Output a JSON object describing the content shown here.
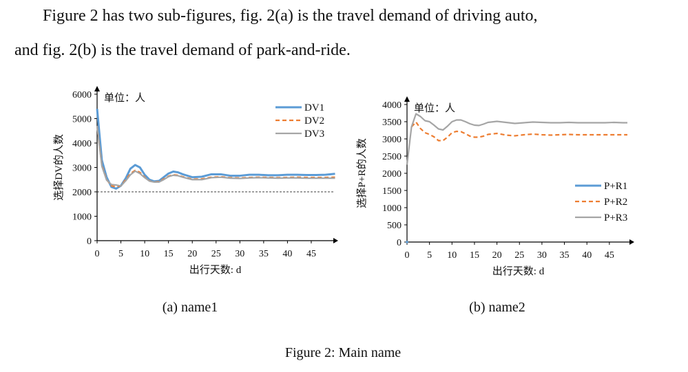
{
  "text": {
    "line1": "Figure 2 has two sub-figures, fig. 2(a) is the travel demand of driving auto,",
    "line2": "and fig. 2(b) is the travel demand of park-and-ride."
  },
  "captions": {
    "sub_a": "(a) name1",
    "sub_b": "(b) name2",
    "main": "Figure 2: Main name"
  },
  "chart_data": [
    {
      "type": "line",
      "unit_label": "单位：人",
      "xlabel": "出行天数: d",
      "ylabel": "选择DV的人数",
      "ylim": [
        0,
        6000
      ],
      "xlim": [
        0,
        50
      ],
      "yticks": [
        0,
        1000,
        2000,
        3000,
        4000,
        5000,
        6000
      ],
      "xticks": [
        0,
        5,
        10,
        15,
        20,
        25,
        30,
        35,
        40,
        45
      ],
      "grid": false,
      "legend": "top-right",
      "reference_line": {
        "y": 2000,
        "style": "dashed"
      },
      "x": [
        0,
        1,
        2,
        3,
        4,
        5,
        6,
        7,
        8,
        9,
        10,
        11,
        12,
        13,
        14,
        15,
        16,
        17,
        18,
        20,
        22,
        24,
        26,
        28,
        30,
        32,
        34,
        36,
        38,
        40,
        42,
        44,
        46,
        48,
        50
      ],
      "series": [
        {
          "name": "DV1",
          "color": "#5b9bd5",
          "style": "solid",
          "values": [
            5400,
            3300,
            2600,
            2200,
            2130,
            2250,
            2550,
            2950,
            3100,
            3000,
            2700,
            2500,
            2430,
            2450,
            2600,
            2750,
            2830,
            2800,
            2720,
            2600,
            2620,
            2720,
            2720,
            2660,
            2660,
            2700,
            2700,
            2680,
            2680,
            2700,
            2700,
            2690,
            2690,
            2700,
            2740
          ]
        },
        {
          "name": "DV2",
          "color": "#ed7d31",
          "style": "dashed",
          "values": [
            4700,
            3100,
            2500,
            2250,
            2200,
            2250,
            2500,
            2750,
            2880,
            2800,
            2600,
            2450,
            2400,
            2420,
            2530,
            2640,
            2700,
            2680,
            2620,
            2520,
            2530,
            2600,
            2620,
            2580,
            2570,
            2590,
            2600,
            2590,
            2580,
            2590,
            2600,
            2590,
            2590,
            2590,
            2600
          ]
        },
        {
          "name": "DV3",
          "color": "#a5a5a5",
          "style": "solid",
          "values": [
            4700,
            3050,
            2480,
            2300,
            2280,
            2240,
            2450,
            2700,
            2850,
            2750,
            2580,
            2440,
            2400,
            2400,
            2500,
            2620,
            2680,
            2660,
            2600,
            2500,
            2500,
            2580,
            2600,
            2560,
            2550,
            2570,
            2580,
            2570,
            2560,
            2570,
            2570,
            2560,
            2560,
            2560,
            2560
          ]
        }
      ]
    },
    {
      "type": "line",
      "unit_label": "单位：人",
      "xlabel": "出行天数: d",
      "ylabel": "选择P+R的人数",
      "ylim": [
        0,
        4000
      ],
      "xlim": [
        0,
        50
      ],
      "yticks": [
        0,
        500,
        1000,
        1500,
        2000,
        2500,
        3000,
        3500,
        4000
      ],
      "xticks": [
        0,
        5,
        10,
        15,
        20,
        25,
        30,
        35,
        40,
        45
      ],
      "grid": false,
      "legend": "right",
      "x": [
        0,
        1,
        2,
        3,
        4,
        5,
        6,
        7,
        8,
        9,
        10,
        11,
        12,
        13,
        14,
        15,
        16,
        17,
        18,
        20,
        22,
        24,
        26,
        28,
        30,
        32,
        34,
        36,
        38,
        40,
        42,
        44,
        46,
        48,
        49
      ],
      "series": [
        {
          "name": "P+R1",
          "color": "#5b9bd5",
          "style": "solid",
          "values": [
            0,
            null,
            null,
            null,
            null,
            null,
            null,
            null,
            null,
            null,
            null,
            null,
            null,
            null,
            null,
            null,
            null,
            null,
            null,
            null,
            null,
            null,
            null,
            null,
            null,
            null,
            null,
            null,
            null,
            null,
            null,
            null,
            null,
            null,
            null
          ]
        },
        {
          "name": "P+R2",
          "color": "#ed7d31",
          "style": "dashed",
          "values": [
            null,
            3350,
            3490,
            3300,
            3180,
            3130,
            3060,
            2950,
            2950,
            3050,
            3180,
            3220,
            3210,
            3150,
            3080,
            3050,
            3050,
            3080,
            3130,
            3160,
            3110,
            3090,
            3120,
            3140,
            3120,
            3110,
            3120,
            3130,
            3120,
            3120,
            3120,
            3120,
            3120,
            3120,
            3120
          ]
        },
        {
          "name": "P+R3",
          "color": "#a5a5a5",
          "style": "solid",
          "values": [
            2250,
            3350,
            3730,
            3650,
            3530,
            3500,
            3400,
            3290,
            3260,
            3370,
            3500,
            3550,
            3550,
            3500,
            3440,
            3400,
            3390,
            3430,
            3480,
            3510,
            3480,
            3450,
            3470,
            3490,
            3480,
            3470,
            3470,
            3480,
            3470,
            3470,
            3470,
            3470,
            3480,
            3470,
            3470
          ]
        }
      ]
    }
  ]
}
